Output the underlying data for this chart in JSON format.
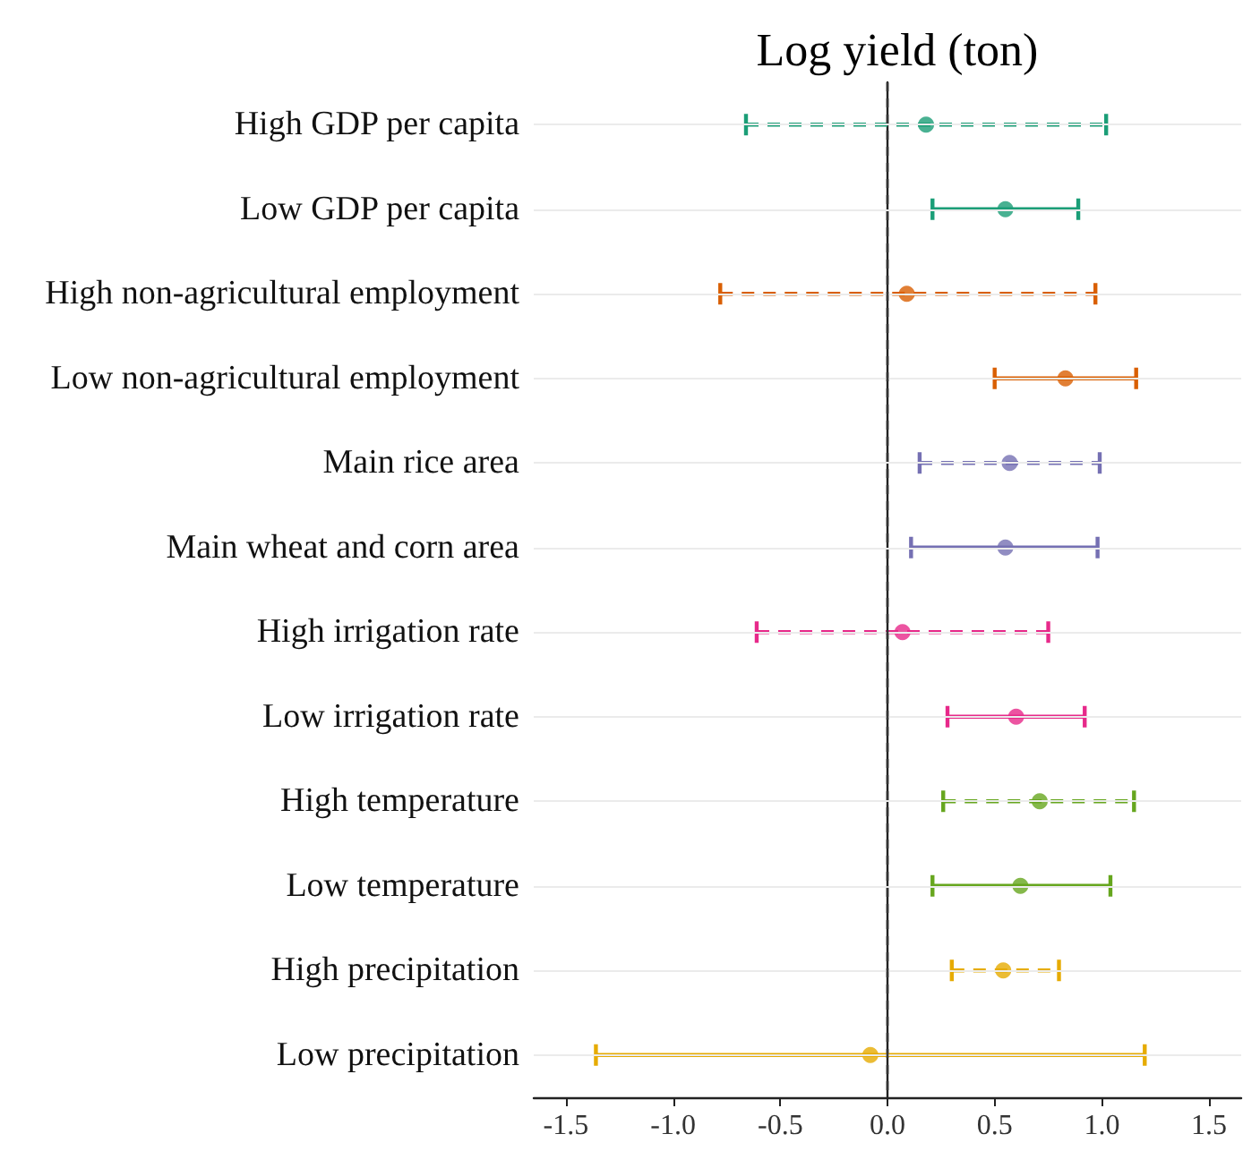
{
  "chart_data": {
    "type": "scatter",
    "orientation": "horizontal",
    "title": "Log yield (ton)",
    "categories": [
      "High GDP per capita",
      "Low GDP per capita",
      "High non-agricultural employment",
      "Low non-agricultural employment",
      "Main rice area",
      "Main wheat and corn area",
      "High irrigation rate",
      "Low irrigation rate",
      "High temperature",
      "Low temperature",
      "High precipitation",
      "Low precipitation"
    ],
    "series": [
      {
        "line_style": "dashed",
        "values": [
          0.18,
          null,
          0.09,
          null,
          0.57,
          null,
          0.07,
          null,
          0.71,
          null,
          0.54,
          null
        ],
        "colors": [
          "#1b9e77",
          null,
          "#d95f02",
          null,
          "#7570b3",
          null,
          "#e7298a",
          null,
          "#66a61e",
          null,
          "#e6ab02",
          null
        ],
        "errors": [
          [
            -0.66,
            1.02
          ],
          null,
          [
            -0.78,
            0.97
          ],
          null,
          [
            0.15,
            0.99
          ],
          null,
          [
            -0.61,
            0.75
          ],
          null,
          [
            0.26,
            1.15
          ],
          null,
          [
            0.3,
            0.8
          ],
          null
        ]
      },
      {
        "line_style": "solid",
        "values": [
          null,
          0.55,
          null,
          0.83,
          null,
          0.55,
          null,
          0.6,
          null,
          0.62,
          null,
          -0.08
        ],
        "colors": [
          null,
          "#1b9e77",
          null,
          "#d95f02",
          null,
          "#7570b3",
          null,
          "#e7298a",
          null,
          "#66a61e",
          null,
          "#e6ab02"
        ],
        "errors": [
          null,
          [
            0.21,
            0.89
          ],
          null,
          [
            0.5,
            1.16
          ],
          null,
          [
            0.11,
            0.98
          ],
          null,
          [
            0.28,
            0.92
          ],
          null,
          [
            0.21,
            1.04
          ],
          null,
          [
            -1.36,
            1.2
          ]
        ]
      }
    ],
    "xlim": [
      -1.65,
      1.65
    ],
    "xticks": [
      {
        "value": -1.5,
        "label": "-1.5"
      },
      {
        "value": -1,
        "label": "-1.0"
      },
      {
        "value": -0.5,
        "label": "-0.5"
      },
      {
        "value": 0,
        "label": "0.0"
      },
      {
        "value": 0.5,
        "label": "0.5"
      },
      {
        "value": 1,
        "label": "1.0"
      },
      {
        "value": 1.5,
        "label": "1.5"
      }
    ],
    "ref_lines": [
      {
        "axis": "x",
        "value": 0,
        "color": "#333333",
        "line_style": "dashed"
      }
    ],
    "grid": "y",
    "marker": "circle"
  }
}
